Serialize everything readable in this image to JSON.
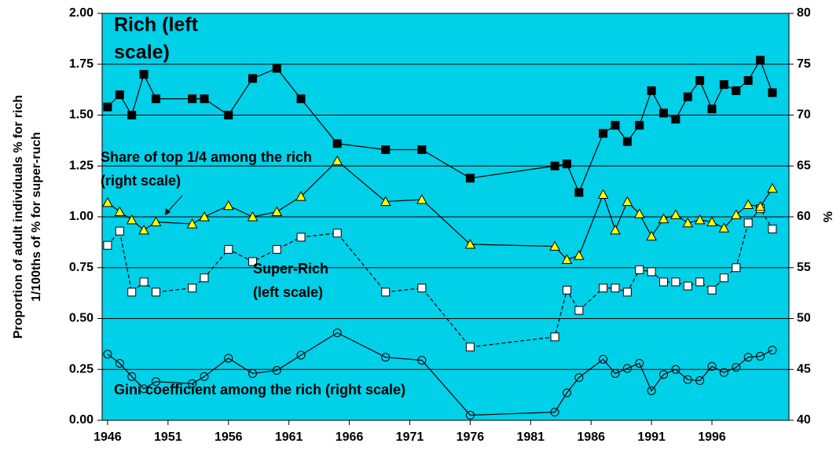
{
  "chart_data": {
    "type": "line",
    "x": [
      1946,
      1947,
      1948,
      1949,
      1950,
      1953,
      1954,
      1956,
      1958,
      1960,
      1962,
      1965,
      1969,
      1972,
      1976,
      1983,
      1984,
      1985,
      1987,
      1988,
      1989,
      1990,
      1991,
      1992,
      1993,
      1994,
      1995,
      1996,
      1997,
      1998,
      1999,
      2000,
      2001
    ],
    "xlim": [
      1945.55,
      2002.37
    ],
    "xticks": [
      1946,
      1951,
      1956,
      1961,
      1966,
      1971,
      1976,
      1981,
      1986,
      1991,
      1996
    ],
    "ylim": [
      0,
      2
    ],
    "yticks": [
      {
        "value": 0,
        "label": "0.00"
      },
      {
        "value": 0.25,
        "label": "0.25"
      },
      {
        "value": 0.5,
        "label": "0.50"
      },
      {
        "value": 0.75,
        "label": "0.75"
      },
      {
        "value": 1,
        "label": "1.00"
      },
      {
        "value": 1.25,
        "label": "1.25"
      },
      {
        "value": 1.5,
        "label": "1.50"
      },
      {
        "value": 1.75,
        "label": "1.75"
      },
      {
        "value": 2,
        "label": "2.00"
      }
    ],
    "y2lim": [
      40,
      80
    ],
    "y2ticks": [
      40,
      45,
      50,
      55,
      60,
      65,
      70,
      75,
      80
    ],
    "y_label": [
      "Proportion of adult individuals % for rich",
      "1/100ths of % for super-ruch"
    ],
    "y2_label": "%",
    "grid": true,
    "plot_background": "#00d0e8",
    "series": [
      {
        "name": [
          "Rich (left",
          "scale)"
        ],
        "axis": "y",
        "color": "#000000",
        "marker": "square",
        "marker_fill": "#000000",
        "dashed": false,
        "values": [
          1.54,
          1.6,
          1.5,
          1.7,
          1.58,
          1.58,
          1.58,
          1.5,
          1.68,
          1.73,
          1.58,
          1.36,
          1.33,
          1.33,
          1.19,
          1.25,
          1.26,
          1.12,
          1.41,
          1.45,
          1.37,
          1.45,
          1.62,
          1.51,
          1.48,
          1.59,
          1.67,
          1.53,
          1.65,
          1.62,
          1.67,
          1.77,
          1.61
        ]
      },
      {
        "name": [
          "Super-Rich",
          "(left scale)"
        ],
        "axis": "y",
        "color": "#000000",
        "marker": "square",
        "marker_fill": "#ffffff",
        "dashed": true,
        "values": [
          0.86,
          0.93,
          0.63,
          0.68,
          0.63,
          0.65,
          0.7,
          0.84,
          0.78,
          0.84,
          0.9,
          0.92,
          0.63,
          0.65,
          0.36,
          0.41,
          0.64,
          0.54,
          0.65,
          0.65,
          0.63,
          0.74,
          0.73,
          0.68,
          0.68,
          0.66,
          0.68,
          0.64,
          0.7,
          0.75,
          0.97,
          1.04,
          0.94
        ]
      },
      {
        "name": [
          "Share of top 1/4 among the rich",
          "(right scale)"
        ],
        "axis": "y2",
        "color": "#000000",
        "marker": "triangle",
        "marker_fill": "#ffff00",
        "dashed": false,
        "values": [
          61.4,
          60.5,
          59.7,
          58.7,
          59.5,
          59.3,
          60.0,
          61.1,
          60.0,
          60.5,
          62.0,
          65.5,
          61.5,
          61.7,
          57.3,
          57.1,
          55.8,
          56.2,
          62.2,
          58.7,
          61.5,
          60.3,
          58.1,
          59.8,
          60.2,
          59.4,
          59.7,
          59.5,
          58.9,
          60.2,
          61.2,
          61.0,
          62.8
        ]
      },
      {
        "name": [
          "Gini coefficient among the rich (right scale)"
        ],
        "axis": "y2",
        "color": "#000000",
        "marker": "circle",
        "marker_fill": "none",
        "dashed": false,
        "values": [
          46.5,
          45.6,
          44.3,
          43.1,
          43.8,
          43.6,
          44.3,
          46.1,
          44.6,
          44.9,
          46.4,
          48.6,
          46.2,
          45.9,
          40.5,
          40.8,
          42.7,
          44.2,
          46.0,
          44.6,
          45.1,
          45.6,
          42.9,
          44.5,
          45.0,
          44.0,
          43.9,
          45.3,
          44.7,
          45.2,
          46.2,
          46.3,
          46.9
        ]
      }
    ]
  }
}
